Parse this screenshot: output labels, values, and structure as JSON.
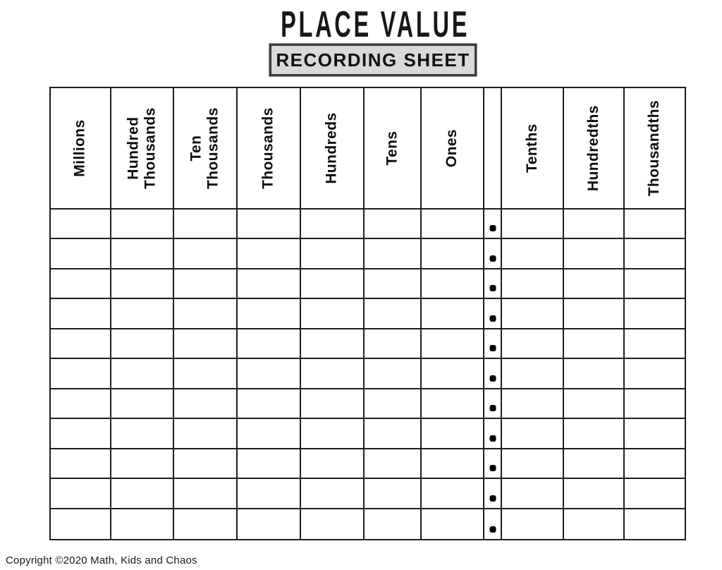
{
  "page": {
    "title": "PLACE VALUE",
    "subtitle": "RECORDING SHEET",
    "footer": "Copyright ©2020 Math, Kids and Chaos"
  },
  "colors": {
    "text": "#0d0d0d",
    "grid_line": "#1d1d1d",
    "subtitle_box_bg": "#d9d9d9",
    "subtitle_box_border": "#3a3a3a",
    "decimal_dot": "#000000"
  },
  "table": {
    "columns": [
      {
        "id": "millions",
        "label": "Millions",
        "type": "digit"
      },
      {
        "id": "hundred-thousands",
        "label": "Hundred\nThousands",
        "type": "digit"
      },
      {
        "id": "ten-thousands",
        "label": "Ten\nThousands",
        "type": "digit"
      },
      {
        "id": "thousands",
        "label": "Thousands",
        "type": "digit"
      },
      {
        "id": "hundreds",
        "label": "Hundreds",
        "type": "digit"
      },
      {
        "id": "tens",
        "label": "Tens",
        "type": "digit"
      },
      {
        "id": "ones",
        "label": "Ones",
        "type": "digit"
      },
      {
        "id": "decimal-point",
        "label": "",
        "type": "decimal"
      },
      {
        "id": "tenths",
        "label": "Tenths",
        "type": "digit"
      },
      {
        "id": "hundredths",
        "label": "Hundredths",
        "type": "digit"
      },
      {
        "id": "thousandths",
        "label": "Thousandths",
        "type": "digit"
      }
    ],
    "row_count": 11,
    "decimal_point_glyph": "•",
    "empty_cell_value": ""
  }
}
